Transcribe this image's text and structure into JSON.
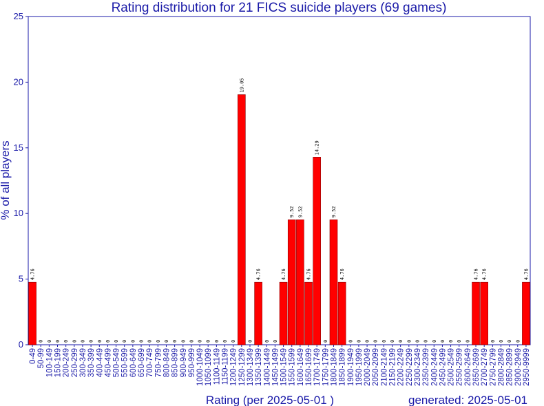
{
  "colors": {
    "text": "#1a1aa8",
    "axis": "#1a1aa8",
    "bar": "#ff0000",
    "bar_border": "#880000",
    "label": "#000000"
  },
  "chart_data": {
    "type": "bar",
    "title": "Rating distribution for 21 FICS suicide players (69 games)",
    "xlabel": "Rating (per 2025-05-01 )",
    "ylabel": "% of all players",
    "footer": "generated: 2025-05-01",
    "ylim": [
      0,
      25
    ],
    "yticks": [
      0,
      5,
      10,
      15,
      20,
      25
    ],
    "grid": false,
    "legend": "none",
    "categories": [
      "0-49",
      "50-99",
      "100-149",
      "150-199",
      "200-249",
      "250-299",
      "300-349",
      "350-399",
      "400-449",
      "450-499",
      "500-549",
      "550-599",
      "600-649",
      "650-699",
      "700-749",
      "750-799",
      "800-849",
      "850-899",
      "900-949",
      "950-999",
      "1000-1049",
      "1050-1099",
      "1100-1149",
      "1150-1199",
      "1200-1249",
      "1250-1299",
      "1300-1349",
      "1350-1399",
      "1400-1449",
      "1450-1499",
      "1500-1549",
      "1550-1599",
      "1600-1649",
      "1650-1699",
      "1700-1749",
      "1750-1799",
      "1800-1849",
      "1850-1899",
      "1900-1949",
      "1950-1999",
      "2000-2049",
      "2050-2099",
      "2100-2149",
      "2150-2199",
      "2200-2249",
      "2250-2299",
      "2300-2349",
      "2350-2399",
      "2400-2449",
      "2450-2499",
      "2500-2549",
      "2550-2599",
      "2600-2649",
      "2650-2699",
      "2700-2749",
      "2750-2799",
      "2800-2849",
      "2850-2899",
      "2900-2949",
      "2950-9999"
    ],
    "values": [
      4.76,
      0,
      0,
      0,
      0,
      0,
      0,
      0,
      0,
      0,
      0,
      0,
      0,
      0,
      0,
      0,
      0,
      0,
      0,
      0,
      0,
      0,
      0,
      0,
      0,
      19.05,
      0,
      4.76,
      0,
      0,
      4.76,
      9.52,
      9.52,
      4.76,
      14.29,
      0,
      9.52,
      4.76,
      0,
      0,
      0,
      0,
      0,
      0,
      0,
      0,
      0,
      0,
      0,
      0,
      0,
      0,
      0,
      4.76,
      4.76,
      0,
      0,
      0,
      0,
      4.76
    ],
    "value_labels": [
      "4.76",
      "0",
      "0",
      "0",
      "0",
      "0",
      "0",
      "0",
      "0",
      "0",
      "0",
      "0",
      "0",
      "0",
      "0",
      "0",
      "0",
      "0",
      "0",
      "0",
      "0",
      "0",
      "0",
      "0",
      "0",
      "19.05",
      "0",
      "4.76",
      "0",
      "0",
      "4.76",
      "9.52",
      "9.52",
      "4.76",
      "14.29",
      "0",
      "9.52",
      "4.76",
      "0",
      "0",
      "0",
      "0",
      "0",
      "0",
      "0",
      "0",
      "0",
      "0",
      "0",
      "0",
      "0",
      "0",
      "0",
      "4.76",
      "4.76",
      "0",
      "0",
      "0",
      "0",
      "4.76"
    ]
  }
}
